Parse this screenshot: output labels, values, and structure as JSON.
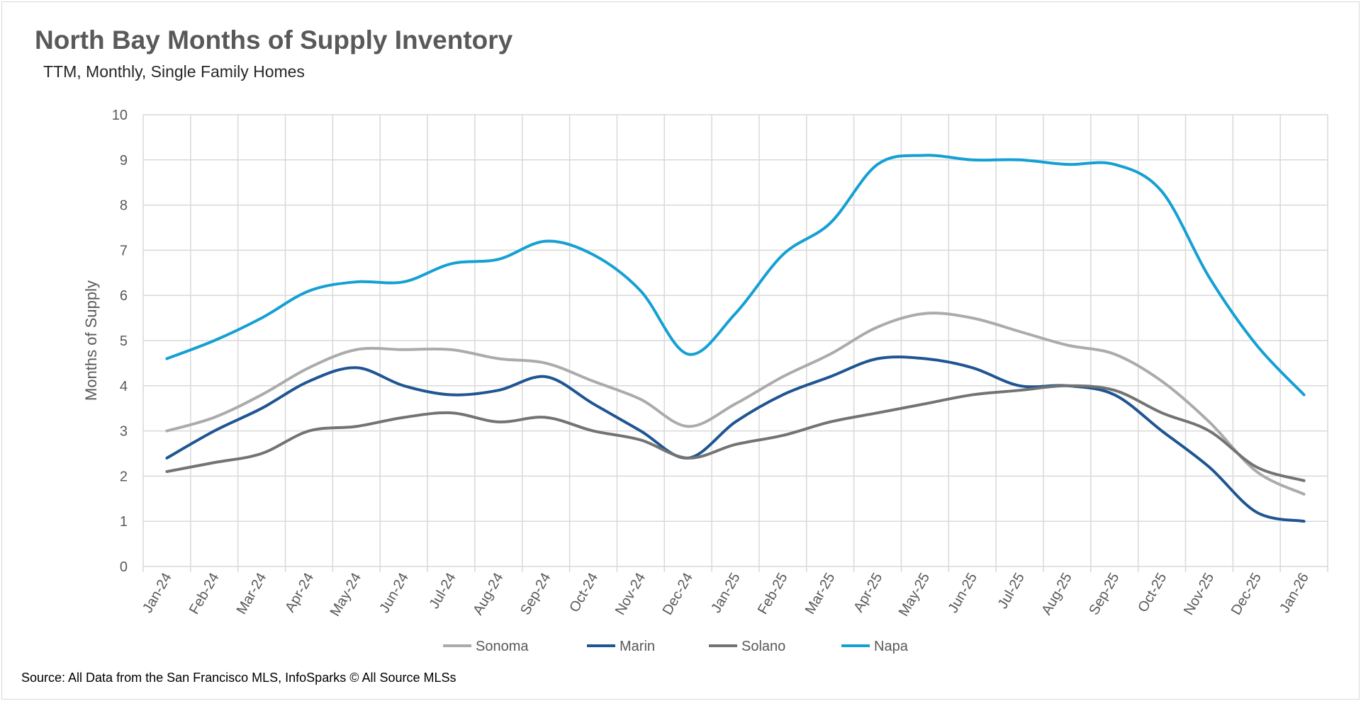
{
  "title": "North Bay Months of Supply Inventory",
  "subtitle": "TTM, Monthly, Single Family Homes",
  "source": "Source: All Data from the San Francisco MLS, InfoSparks © All Source MLSs",
  "chart_data": {
    "type": "line",
    "title": "North Bay Months of Supply Inventory",
    "subtitle": "TTM, Monthly, Single Family Homes",
    "xlabel": "",
    "ylabel": "Months of Supply",
    "ylim": [
      0,
      10
    ],
    "yticks": [
      0,
      1,
      2,
      3,
      4,
      5,
      6,
      7,
      8,
      9,
      10
    ],
    "grid": true,
    "smooth": true,
    "legend_position": "bottom",
    "categories": [
      "Jan-24",
      "Feb-24",
      "Mar-24",
      "Apr-24",
      "May-24",
      "Jun-24",
      "Jul-24",
      "Aug-24",
      "Sep-24",
      "Oct-24",
      "Nov-24",
      "Dec-24",
      "Jan-25",
      "Feb-25",
      "Mar-25",
      "Apr-25",
      "May-25",
      "Jun-25",
      "Jul-25",
      "Aug-25",
      "Sep-25",
      "Oct-25",
      "Nov-25",
      "Dec-25",
      "Jan-26"
    ],
    "series": [
      {
        "name": "Sonoma",
        "color": "#ababab",
        "values": [
          3.0,
          3.3,
          3.8,
          4.4,
          4.8,
          4.8,
          4.8,
          4.6,
          4.5,
          4.1,
          3.7,
          3.1,
          3.6,
          4.2,
          4.7,
          5.3,
          5.6,
          5.5,
          5.2,
          4.9,
          4.7,
          4.1,
          3.2,
          2.1,
          1.6
        ]
      },
      {
        "name": "Marin",
        "color": "#1f5592",
        "values": [
          2.4,
          3.0,
          3.5,
          4.1,
          4.4,
          4.0,
          3.8,
          3.9,
          4.2,
          3.6,
          3.0,
          2.4,
          3.2,
          3.8,
          4.2,
          4.6,
          4.6,
          4.4,
          4.0,
          4.0,
          3.8,
          3.0,
          2.2,
          1.2,
          1.0
        ]
      },
      {
        "name": "Solano",
        "color": "#737373",
        "values": [
          2.1,
          2.3,
          2.5,
          3.0,
          3.1,
          3.3,
          3.4,
          3.2,
          3.3,
          3.0,
          2.8,
          2.4,
          2.7,
          2.9,
          3.2,
          3.4,
          3.6,
          3.8,
          3.9,
          4.0,
          3.9,
          3.4,
          3.0,
          2.2,
          1.9
        ]
      },
      {
        "name": "Napa",
        "color": "#15a0d3",
        "values": [
          4.6,
          5.0,
          5.5,
          6.1,
          6.3,
          6.3,
          6.7,
          6.8,
          7.2,
          6.9,
          6.1,
          4.7,
          5.6,
          6.9,
          7.6,
          8.9,
          9.1,
          9.0,
          9.0,
          8.9,
          8.9,
          8.3,
          6.4,
          4.9,
          3.8
        ]
      }
    ]
  }
}
